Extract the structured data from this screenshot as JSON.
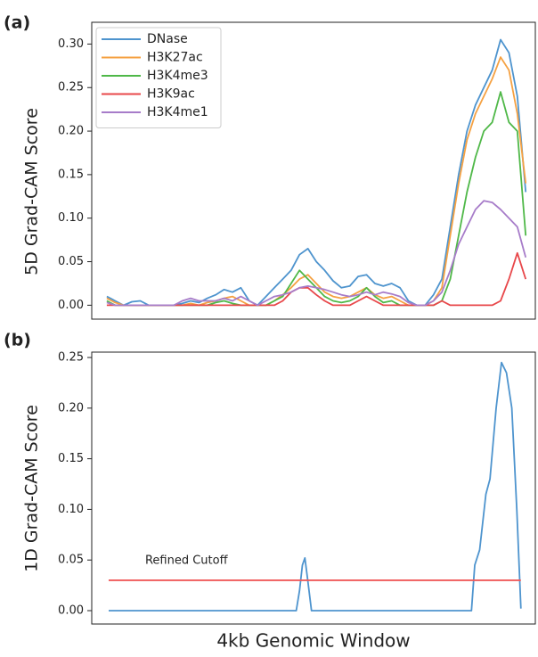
{
  "chart_data": [
    {
      "type": "line",
      "panel_label": "(a)",
      "y_label": "5D Grad-CAM Score",
      "x_label": "4kb Genomic Window",
      "x": [
        0,
        2,
        4,
        6,
        8,
        10,
        12,
        14,
        16,
        18,
        20,
        22,
        24,
        26,
        28,
        30,
        32,
        34,
        36,
        38,
        40,
        42,
        44,
        46,
        48,
        50,
        52,
        54,
        56,
        58,
        60,
        62,
        64,
        66,
        68,
        70,
        72,
        74,
        76,
        78,
        80,
        82,
        84,
        86,
        88,
        90,
        92,
        94,
        96,
        98,
        100
      ],
      "xlim": [
        -3.6,
        102.3
      ],
      "ylim": [
        -0.016,
        0.325
      ],
      "yticks": [
        {
          "value": 0,
          "label": "0.00"
        },
        {
          "value": 0.05,
          "label": "0.05"
        },
        {
          "value": 0.1,
          "label": "0.10"
        },
        {
          "value": 0.15,
          "label": "0.15"
        },
        {
          "value": 0.2,
          "label": "0.20"
        },
        {
          "value": 0.25,
          "label": "0.25"
        },
        {
          "value": 0.3,
          "label": "0.30"
        }
      ],
      "legend": "upper left",
      "series": [
        {
          "name": "DNase",
          "color": "#4e94ce",
          "values": [
            0.01,
            0.005,
            0,
            0.004,
            0.005,
            0,
            0,
            0,
            0,
            0.002,
            0.005,
            0.003,
            0.008,
            0.012,
            0.018,
            0.015,
            0.02,
            0.005,
            0,
            0.01,
            0.02,
            0.03,
            0.04,
            0.058,
            0.065,
            0.05,
            0.04,
            0.028,
            0.02,
            0.022,
            0.033,
            0.035,
            0.025,
            0.022,
            0.025,
            0.02,
            0.005,
            0,
            0,
            0.012,
            0.03,
            0.09,
            0.15,
            0.2,
            0.23,
            0.25,
            0.27,
            0.305,
            0.29,
            0.24,
            0.13
          ]
        },
        {
          "name": "H3K27ac",
          "color": "#f5a142",
          "values": [
            0.008,
            0.003,
            0,
            0,
            0,
            0,
            0,
            0,
            0,
            0,
            0.002,
            0,
            0.003,
            0.005,
            0.008,
            0.01,
            0.005,
            0,
            0,
            0,
            0.005,
            0.012,
            0.02,
            0.03,
            0.035,
            0.025,
            0.015,
            0.01,
            0.008,
            0.01,
            0.015,
            0.02,
            0.012,
            0.008,
            0.01,
            0.005,
            0,
            0,
            0,
            0.005,
            0.02,
            0.08,
            0.14,
            0.19,
            0.22,
            0.24,
            0.26,
            0.285,
            0.27,
            0.22,
            0.14
          ]
        },
        {
          "name": "H3K4me3",
          "color": "#4fb848",
          "values": [
            0.005,
            0,
            0,
            0,
            0,
            0,
            0,
            0,
            0,
            0,
            0,
            0,
            0,
            0.003,
            0.005,
            0.002,
            0,
            0,
            0,
            0,
            0.005,
            0.01,
            0.025,
            0.04,
            0.03,
            0.02,
            0.01,
            0.005,
            0.003,
            0.005,
            0.01,
            0.02,
            0.01,
            0.003,
            0.005,
            0,
            0,
            0,
            0,
            0,
            0.005,
            0.03,
            0.08,
            0.13,
            0.17,
            0.2,
            0.21,
            0.245,
            0.21,
            0.2,
            0.08
          ]
        },
        {
          "name": "H3K9ac",
          "color": "#e8474a",
          "values": [
            0,
            0,
            0,
            0,
            0,
            0,
            0,
            0,
            0,
            0,
            0,
            0,
            0,
            0,
            0,
            0,
            0,
            0,
            0,
            0,
            0,
            0.005,
            0.015,
            0.02,
            0.02,
            0.012,
            0.005,
            0,
            0,
            0,
            0.005,
            0.01,
            0.005,
            0,
            0,
            0,
            0,
            0,
            0,
            0,
            0.005,
            0,
            0,
            0,
            0,
            0,
            0,
            0.005,
            0.03,
            0.06,
            0.03
          ]
        },
        {
          "name": "H3K4me1",
          "color": "#a77cc9",
          "values": [
            0.003,
            0,
            0,
            0,
            0,
            0,
            0,
            0,
            0,
            0.005,
            0.008,
            0.005,
            0.005,
            0.005,
            0.008,
            0.005,
            0.01,
            0.005,
            0,
            0.005,
            0.01,
            0.012,
            0.015,
            0.02,
            0.022,
            0.02,
            0.018,
            0.015,
            0.012,
            0.01,
            0.012,
            0.015,
            0.012,
            0.015,
            0.013,
            0.01,
            0.003,
            0,
            0,
            0.005,
            0.015,
            0.04,
            0.07,
            0.09,
            0.11,
            0.12,
            0.118,
            0.11,
            0.1,
            0.09,
            0.055
          ]
        }
      ]
    },
    {
      "type": "line",
      "panel_label": "(b)",
      "y_label": "1D Grad-CAM Score",
      "x": [
        0,
        45.5,
        46.3,
        47,
        47.6,
        48.3,
        49.2,
        88,
        88.8,
        90,
        91.5,
        92.5,
        94,
        95.3,
        96.5,
        97.8,
        99,
        100
      ],
      "xlim": [
        -4.1,
        103.5
      ],
      "ylim": [
        -0.0132,
        0.2553
      ],
      "yticks": [
        {
          "value": 0,
          "label": "0.00"
        },
        {
          "value": 0.05,
          "label": "0.05"
        },
        {
          "value": 0.1,
          "label": "0.10"
        },
        {
          "value": 0.15,
          "label": "0.15"
        },
        {
          "value": 0.2,
          "label": "0.20"
        },
        {
          "value": 0.25,
          "label": "0.25"
        }
      ],
      "series": [
        {
          "color": "#4e94ce",
          "values": [
            0,
            0,
            0.02,
            0.045,
            0.052,
            0.03,
            0,
            0,
            0.045,
            0.06,
            0.115,
            0.13,
            0.2,
            0.245,
            0.235,
            0.2,
            0.1,
            0.002
          ]
        }
      ],
      "cutoff": {
        "value": 0.03,
        "label": "Refined Cutoff",
        "color": "#f05a5a"
      }
    }
  ]
}
